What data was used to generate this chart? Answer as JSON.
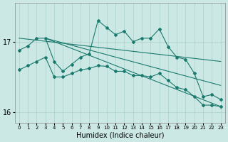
{
  "xlabel": "Humidex (Indice chaleur)",
  "bg_color": "#cce8e4",
  "grid_color": "#aad0cc",
  "line_color": "#1a7a6e",
  "x_values": [
    0,
    1,
    2,
    3,
    4,
    5,
    6,
    7,
    8,
    9,
    10,
    11,
    12,
    13,
    14,
    15,
    16,
    17,
    18,
    19,
    20,
    21,
    22,
    23
  ],
  "series1": [
    16.88,
    16.94,
    17.05,
    17.05,
    16.72,
    16.58,
    16.68,
    16.78,
    16.83,
    17.3,
    17.2,
    17.1,
    17.15,
    17.0,
    17.05,
    17.05,
    17.18,
    16.93,
    16.78,
    16.75,
    16.55,
    16.22,
    16.25,
    16.18
  ],
  "series2": [
    16.6,
    16.66,
    16.72,
    16.78,
    16.5,
    16.5,
    16.55,
    16.6,
    16.62,
    16.66,
    16.65,
    16.58,
    16.58,
    16.52,
    16.52,
    16.5,
    16.55,
    16.45,
    16.35,
    16.32,
    16.22,
    16.1,
    16.1,
    16.08
  ],
  "line1_x": [
    0,
    23
  ],
  "line1_y": [
    17.05,
    16.72
  ],
  "line2_x": [
    3,
    23
  ],
  "line2_y": [
    17.05,
    16.08
  ],
  "line3_x": [
    3,
    23
  ],
  "line3_y": [
    17.05,
    16.38
  ],
  "ylim": [
    15.85,
    17.55
  ],
  "yticks": [
    16,
    17
  ],
  "xlim": [
    -0.5,
    23.5
  ],
  "xticks": [
    0,
    1,
    2,
    3,
    4,
    5,
    6,
    7,
    8,
    9,
    10,
    11,
    12,
    13,
    14,
    15,
    16,
    17,
    18,
    19,
    20,
    21,
    22,
    23
  ]
}
